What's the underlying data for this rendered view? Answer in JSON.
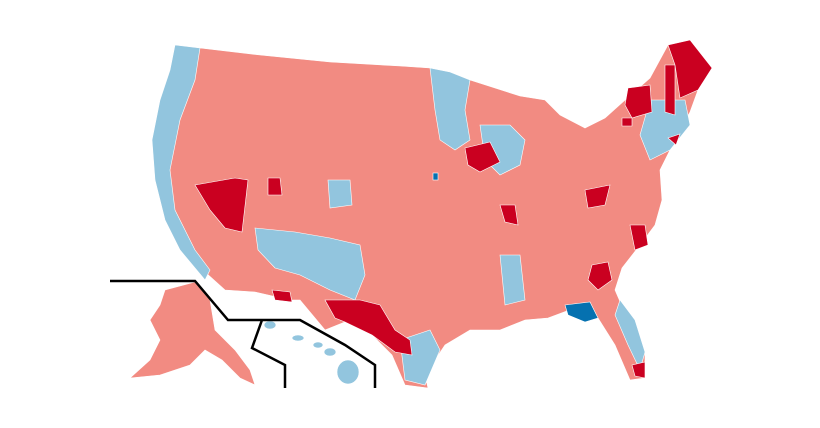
{
  "map": {
    "colors": {
      "land": "#f28b82",
      "light_blue": "#92c5de",
      "blue": "#0571b0",
      "red": "#ca0020",
      "inset_line": "#000000"
    }
  }
}
